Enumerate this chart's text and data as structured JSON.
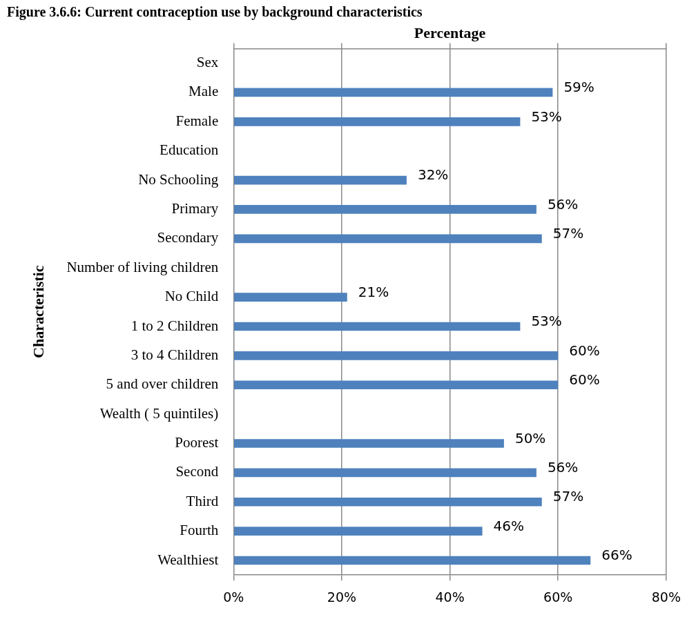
{
  "chart_data": {
    "type": "bar",
    "orientation": "horizontal",
    "title": "Figure 3.6.6: Current contraception use by background characteristics",
    "xlabel": "Percentage",
    "ylabel": "Characteristic",
    "categories": [
      "Sex",
      "Male",
      "Female",
      "Education",
      "No Schooling",
      "Primary",
      "Secondary",
      "Number of living children",
      "No Child",
      "1 to 2 Children",
      "3 to 4 Children",
      "5 and over children",
      "Wealth ( 5 quintiles)",
      "Poorest",
      "Second",
      "Third",
      "Fourth",
      "Wealthiest"
    ],
    "values": [
      null,
      59,
      53,
      null,
      32,
      56,
      57,
      null,
      21,
      53,
      60,
      60,
      null,
      50,
      56,
      57,
      46,
      66
    ],
    "value_labels": [
      null,
      "59%",
      "53%",
      null,
      "32%",
      "56%",
      "57%",
      null,
      "21%",
      "53%",
      "60%",
      "60%",
      null,
      "50%",
      "56%",
      "57%",
      "46%",
      "66%"
    ],
    "color": "#4f81bd",
    "xlim": [
      0,
      80
    ],
    "xticks": [
      {
        "value": 0,
        "label": "0%"
      },
      {
        "value": 20,
        "label": "20%"
      },
      {
        "value": 40,
        "label": "40%"
      },
      {
        "value": 60,
        "label": "60%"
      },
      {
        "value": 80,
        "label": "80%"
      }
    ],
    "grid": "x",
    "legend": false
  }
}
